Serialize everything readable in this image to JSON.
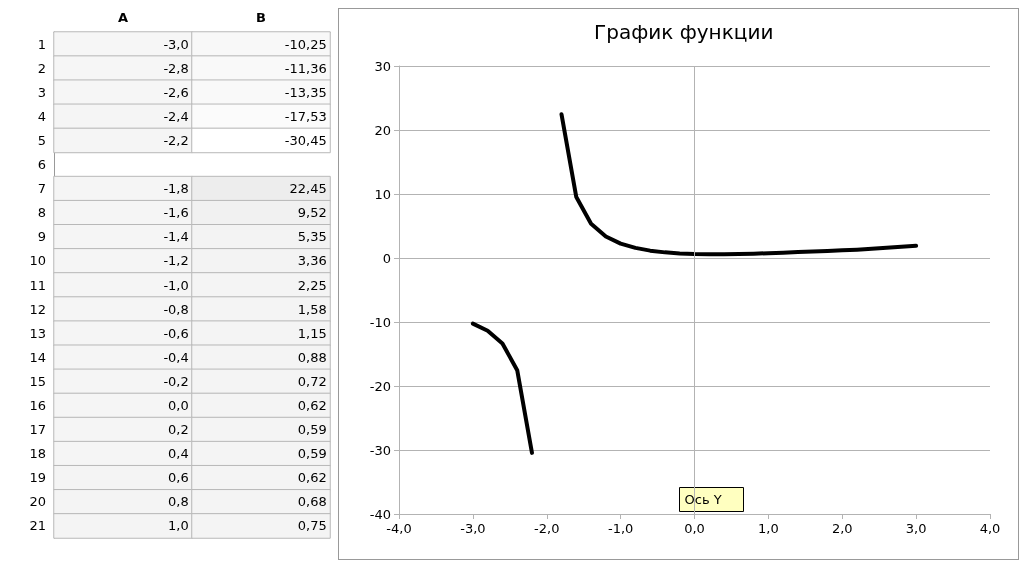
{
  "chart_data": [
    {
      "type": "heatmap",
      "categories": [
        "A",
        "B"
      ],
      "y_categories": [
        "1",
        "2",
        "3",
        "4",
        "5",
        "6",
        "7",
        "8",
        "9",
        "10",
        "11",
        "12",
        "13",
        "14",
        "15",
        "16",
        "17",
        "18",
        "19",
        "20",
        "21"
      ],
      "cells": [
        [
          -3.0,
          -10.25
        ],
        [
          -2.8,
          -11.36
        ],
        [
          -2.6,
          -13.35
        ],
        [
          -2.4,
          -17.53
        ],
        [
          -2.2,
          -30.45
        ],
        [
          null,
          null
        ],
        [
          -1.8,
          22.45
        ],
        [
          -1.6,
          9.52
        ],
        [
          -1.4,
          5.35
        ],
        [
          -1.2,
          3.36
        ],
        [
          -1.0,
          2.25
        ],
        [
          -0.8,
          1.58
        ],
        [
          -0.6,
          1.15
        ],
        [
          -0.4,
          0.88
        ],
        [
          -0.2,
          0.72
        ],
        [
          0.0,
          0.62
        ],
        [
          0.2,
          0.59
        ],
        [
          0.4,
          0.59
        ],
        [
          0.6,
          0.62
        ],
        [
          0.8,
          0.68
        ],
        [
          1.0,
          0.75
        ]
      ],
      "cell_labels": [
        [
          "-3,0",
          "-10,25"
        ],
        [
          "-2,8",
          "-11,36"
        ],
        [
          "-2,6",
          "-13,35"
        ],
        [
          "-2,4",
          "-17,53"
        ],
        [
          "-2,2",
          "-30,45"
        ],
        [
          null,
          null
        ],
        [
          "-1,8",
          "22,45"
        ],
        [
          "-1,6",
          "9,52"
        ],
        [
          "-1,4",
          "5,35"
        ],
        [
          "-1,2",
          "3,36"
        ],
        [
          "-1,0",
          "2,25"
        ],
        [
          "-0,8",
          "1,58"
        ],
        [
          "-0,6",
          "1,15"
        ],
        [
          "-0,4",
          "0,88"
        ],
        [
          "-0,2",
          "0,72"
        ],
        [
          "0,0",
          "0,62"
        ],
        [
          "0,2",
          "0,59"
        ],
        [
          "0,4",
          "0,59"
        ],
        [
          "0,6",
          "0,62"
        ],
        [
          "0,8",
          "0,68"
        ],
        [
          "1,0",
          "0,75"
        ]
      ]
    },
    {
      "type": "line",
      "title": "График функции",
      "x": [
        -3.0,
        -2.8,
        -2.6,
        -2.4,
        -2.2,
        -2.0,
        -1.8,
        -1.6,
        -1.4,
        -1.2,
        -1.0,
        -0.8,
        -0.6,
        -0.4,
        -0.2,
        0.0,
        0.2,
        0.4,
        0.6,
        0.8,
        1.0,
        1.2,
        1.4,
        1.6,
        1.8,
        2.0,
        2.2,
        2.4,
        2.6,
        2.8,
        3.0
      ],
      "values": [
        -10.25,
        -11.36,
        -13.35,
        -17.53,
        -30.45,
        null,
        22.45,
        9.52,
        5.35,
        3.36,
        2.25,
        1.58,
        1.15,
        0.88,
        0.72,
        0.62,
        0.59,
        0.59,
        0.62,
        0.68,
        0.75,
        0.83,
        0.92,
        1.0,
        1.1,
        1.2,
        1.3,
        1.45,
        1.6,
        1.75,
        1.9
      ],
      "color": "#000000",
      "marker": "none",
      "line_style": "solid",
      "grid": "y",
      "xlim": [
        -4,
        4
      ],
      "xticks": [
        {
          "value": -4,
          "label": "-4,0"
        },
        {
          "value": -3,
          "label": "-3,0"
        },
        {
          "value": -2,
          "label": "-2,0"
        },
        {
          "value": -1,
          "label": "-1,0"
        },
        {
          "value": 0,
          "label": "0,0"
        },
        {
          "value": 1,
          "label": "1,0"
        },
        {
          "value": 2,
          "label": "2,0"
        },
        {
          "value": 3,
          "label": "3,0"
        },
        {
          "value": 4,
          "label": "4,0"
        }
      ],
      "ylim": [
        -40,
        30
      ],
      "yticks": [
        -40,
        -30,
        -20,
        -10,
        0,
        10,
        20,
        30
      ],
      "ref_lines": [
        {
          "axis": "x",
          "value": 0,
          "color": "#b3b3b3"
        }
      ],
      "annotations": [
        "Ось Y"
      ]
    }
  ]
}
